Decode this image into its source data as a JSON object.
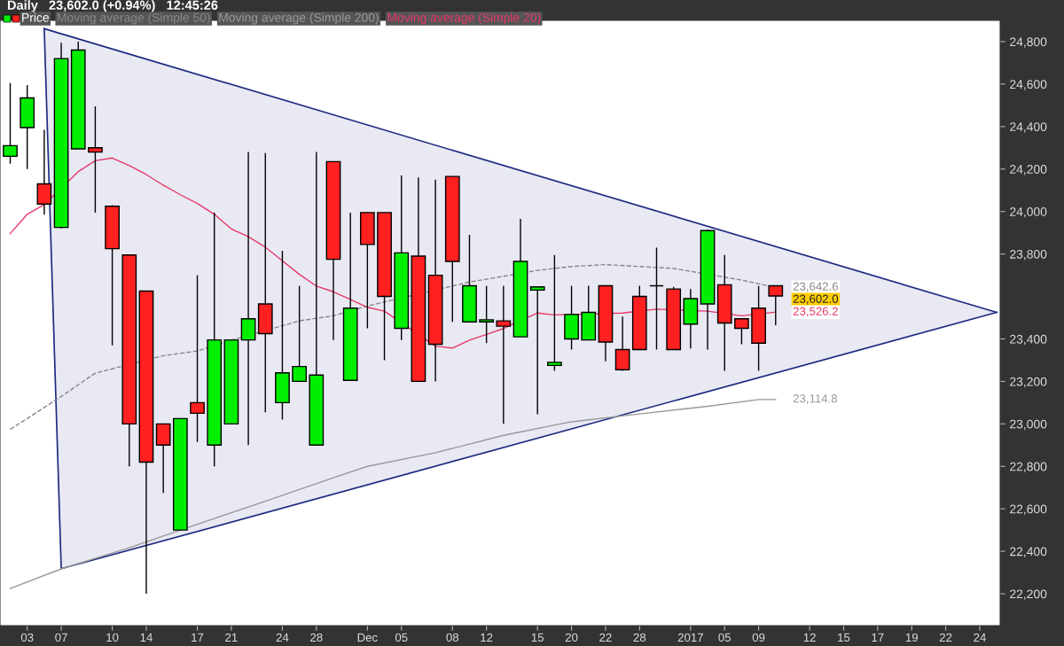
{
  "chart_data": {
    "type": "candlestick",
    "title": "Daily   23,602.0 (+0.94%)   12:45:26",
    "categories": [
      null,
      "03",
      null,
      "07",
      null,
      null,
      "10",
      null,
      "14",
      null,
      null,
      "17",
      null,
      "21",
      null,
      null,
      "24",
      null,
      "28",
      null,
      null,
      "Dec",
      null,
      "05",
      null,
      null,
      "08",
      null,
      "12",
      null,
      null,
      "15",
      null,
      "20",
      null,
      "22",
      null,
      "28",
      null,
      null,
      "2017",
      null,
      "05",
      null,
      "09",
      null,
      null,
      "12",
      null,
      "15",
      null,
      "17",
      null,
      "19",
      null,
      "22",
      null,
      "24",
      null
    ],
    "series": [
      {
        "type": "line",
        "color": "#1a2a80",
        "values": [
          null,
          null,
          24861,
          24837,
          null,
          null,
          null,
          null,
          null,
          null,
          null,
          null,
          null,
          null,
          null,
          null,
          null,
          null,
          null,
          null,
          null,
          null,
          null,
          null,
          null,
          null,
          null,
          null,
          null,
          null,
          null,
          null,
          null,
          null,
          null,
          null,
          null,
          null,
          null,
          null,
          null,
          null,
          null,
          null,
          null,
          null,
          null,
          null,
          null,
          null,
          null,
          null,
          null,
          null,
          null,
          null,
          null,
          null,
          23525
        ],
        "lower": [
          null,
          null,
          24861,
          22318,
          null,
          null,
          null,
          null,
          null,
          null,
          null,
          null,
          null,
          null,
          null,
          null,
          null,
          null,
          null,
          null,
          null,
          null,
          null,
          null,
          null,
          null,
          null,
          null,
          null,
          null,
          null,
          null,
          null,
          null,
          null,
          null,
          null,
          null,
          null,
          null,
          null,
          null,
          null,
          null,
          null,
          null,
          null,
          null,
          null,
          null,
          null,
          null,
          null,
          null,
          null,
          null,
          null,
          null,
          23525
        ],
        "upper": [
          null,
          null,
          24861,
          24837,
          null,
          null,
          null,
          null,
          null,
          null,
          null,
          null,
          null,
          null,
          null,
          null,
          null,
          null,
          null,
          null,
          null,
          null,
          null,
          null,
          null,
          null,
          null,
          null,
          null,
          null,
          null,
          null,
          null,
          null,
          null,
          null,
          null,
          null,
          null,
          null,
          null,
          null,
          null,
          null,
          null,
          null,
          null,
          null,
          null,
          null,
          null,
          null,
          null,
          null,
          null,
          null,
          null,
          null,
          23525
        ]
      },
      {
        "name": "Price",
        "color": "#ffcc00",
        "ohlc": [
          [
            24260,
            24605,
            24225,
            24310
          ],
          [
            24395,
            24595,
            24200,
            24535
          ],
          [
            24130,
            24385,
            23985,
            24035
          ],
          [
            23925,
            24795,
            23920,
            24720
          ],
          [
            24295,
            24800,
            24295,
            24760
          ],
          [
            24300,
            24495,
            23995,
            24280
          ],
          [
            24025,
            24030,
            23370,
            23825
          ],
          [
            23795,
            23795,
            22800,
            23000
          ],
          [
            23625,
            23625,
            22200,
            22820
          ],
          [
            23000,
            23000,
            22675,
            22900
          ],
          [
            22500,
            23025,
            22500,
            23025
          ],
          [
            23100,
            23700,
            22915,
            23050
          ],
          [
            22900,
            23995,
            22800,
            23395
          ],
          [
            23000,
            23395,
            23000,
            23395
          ],
          [
            23395,
            24280,
            22900,
            23495
          ],
          [
            23565,
            24275,
            23055,
            23425
          ],
          [
            23100,
            23815,
            23020,
            23240
          ],
          [
            23200,
            23650,
            23200,
            23270
          ],
          [
            22900,
            24280,
            22900,
            23230
          ],
          [
            24235,
            24235,
            23395,
            23775
          ],
          [
            23205,
            23995,
            23205,
            23545
          ],
          [
            23995,
            23995,
            23450,
            23845
          ],
          [
            23995,
            23995,
            23300,
            23600
          ],
          [
            23450,
            24170,
            23395,
            23805
          ],
          [
            23790,
            24160,
            23200,
            23200
          ],
          [
            23700,
            24150,
            23200,
            23375
          ],
          [
            24165,
            24165,
            23480,
            23765
          ],
          [
            23480,
            23890,
            23480,
            23650
          ],
          [
            23480,
            23650,
            23380,
            23490
          ],
          [
            23485,
            23650,
            23000,
            23460
          ],
          [
            23410,
            23965,
            23410,
            23765
          ],
          [
            23630,
            23645,
            23045,
            23645
          ],
          [
            23275,
            23795,
            23250,
            23290
          ],
          [
            23400,
            23650,
            23350,
            23515
          ],
          [
            23395,
            23650,
            23395,
            23525
          ],
          [
            23650,
            23650,
            23295,
            23385
          ],
          [
            23350,
            23505,
            23250,
            23255
          ],
          [
            23600,
            23650,
            23350,
            23350
          ],
          [
            23650,
            23830,
            23350,
            23650
          ],
          [
            23635,
            23645,
            23350,
            23350
          ],
          [
            23470,
            23635,
            23355,
            23590
          ],
          [
            23565,
            23915,
            23350,
            23910
          ],
          [
            23655,
            23795,
            23250,
            23475
          ],
          [
            23495,
            23495,
            23375,
            23450
          ],
          [
            23545,
            23650,
            23250,
            23380
          ],
          [
            23650,
            23650,
            23465,
            23602
          ],
          null,
          null,
          null,
          null,
          null,
          null,
          null,
          null,
          null,
          null,
          null,
          null,
          null
        ],
        "colors": [
          "#00ee00",
          "#00ee00",
          "#ff2020",
          "#00ee00",
          "#00ee00",
          "#ff2020",
          "#ff2020",
          "#ff2020",
          "#ff2020",
          "#ff2020",
          "#00ee00",
          "#ff2020",
          "#00ee00",
          "#00ee00",
          "#00ee00",
          "#ff2020",
          "#00ee00",
          "#00ee00",
          "#00ee00",
          "#ff2020",
          "#00ee00",
          "#ff2020",
          "#ff2020",
          "#00ee00",
          "#ff2020",
          "#ff2020",
          "#ff2020",
          "#00ee00",
          "#00ee00",
          "#ff2020",
          "#00ee00",
          "#00ee00",
          "#00ee00",
          "#00ee00",
          "#00ee00",
          "#ff2020",
          "#ff2020",
          "#ff2020",
          "#000000",
          "#ff2020",
          "#00ee00",
          "#00ee00",
          "#ff2020",
          "#ff2020",
          "#ff2020",
          "#ff2020",
          null,
          null,
          null,
          null,
          null,
          null,
          null,
          null,
          null,
          null,
          null,
          null,
          null
        ],
        "value_labels": [
          null,
          null,
          null,
          null,
          null,
          null,
          null,
          null,
          null,
          null,
          null,
          null,
          null,
          null,
          null,
          null,
          null,
          null,
          null,
          null,
          null,
          null,
          null,
          null,
          null,
          null,
          null,
          null,
          null,
          null,
          null,
          null,
          null,
          null,
          null,
          null,
          null,
          null,
          null,
          null,
          null,
          null,
          null,
          null,
          null,
          "23,602.0",
          null,
          null,
          null,
          null,
          null,
          null,
          null,
          null,
          null,
          null,
          null,
          null,
          null
        ]
      },
      {
        "name": "Moving average (Simple 50)",
        "type": "line",
        "color": "#888888",
        "line_style": "dashed",
        "values": [
          22974,
          null,
          null,
          23129,
          null,
          23239,
          null,
          null,
          null,
          23321,
          null,
          23343,
          null,
          23394,
          null,
          null,
          null,
          23485,
          null,
          23509,
          null,
          23555,
          null,
          null,
          null,
          null,
          null,
          23668,
          null,
          23695,
          null,
          23723,
          null,
          23741,
          null,
          23750,
          null,
          23741,
          null,
          23732,
          null,
          null,
          null,
          23677,
          null,
          23642.6,
          null,
          null,
          null,
          null,
          null,
          null,
          null,
          null,
          null,
          null,
          null,
          null,
          null
        ],
        "value_labels": [
          null,
          null,
          null,
          null,
          null,
          null,
          null,
          null,
          null,
          null,
          null,
          null,
          null,
          null,
          null,
          null,
          null,
          null,
          null,
          null,
          null,
          null,
          null,
          null,
          null,
          null,
          null,
          null,
          null,
          null,
          null,
          null,
          null,
          null,
          null,
          null,
          null,
          null,
          null,
          null,
          null,
          null,
          null,
          null,
          null,
          "23,642.6",
          null,
          null,
          null,
          null,
          null,
          null,
          null,
          null,
          null,
          null,
          null,
          null,
          null
        ]
      },
      {
        "name": "Moving average (Simple 200)",
        "type": "line",
        "color": "#999999",
        "values": [
          22225,
          null,
          null,
          22317,
          null,
          null,
          null,
          22417,
          null,
          null,
          null,
          22527,
          null,
          null,
          null,
          22636,
          null,
          null,
          null,
          22746,
          null,
          22800,
          null,
          null,
          null,
          22864,
          null,
          null,
          null,
          22946,
          null,
          null,
          null,
          23010,
          null,
          null,
          null,
          23047,
          null,
          null,
          null,
          23083,
          null,
          null,
          23114.8,
          23114.8,
          null,
          null,
          null,
          null,
          null,
          null,
          null,
          null,
          null,
          null,
          null,
          null,
          null
        ],
        "value_labels": [
          null,
          null,
          null,
          null,
          null,
          null,
          null,
          null,
          null,
          null,
          null,
          null,
          null,
          null,
          null,
          null,
          null,
          null,
          null,
          null,
          null,
          null,
          null,
          null,
          null,
          null,
          null,
          null,
          null,
          null,
          null,
          null,
          null,
          null,
          null,
          null,
          null,
          null,
          null,
          null,
          null,
          null,
          null,
          null,
          null,
          "23,114.8",
          null,
          null,
          null,
          null,
          null,
          null,
          null,
          null,
          null,
          null,
          null,
          null,
          null
        ]
      },
      {
        "name": "Moving average (Simple 20)",
        "type": "line",
        "color": "#e8386a",
        "values": [
          23896,
          23987,
          24033,
          null,
          24188,
          24239,
          24252,
          24216,
          24174,
          24124,
          24079,
          24038,
          23987,
          23918,
          23881,
          23832,
          23768,
          23704,
          23649,
          23622,
          23586,
          23549,
          23531,
          null,
          null,
          23366,
          23357,
          23394,
          23421,
          23449,
          null,
          23522,
          23513,
          null,
          null,
          null,
          23522,
          null,
          23540,
          null,
          null,
          23531,
          null,
          23509,
          null,
          23526.2,
          null,
          null,
          null,
          null,
          null,
          null,
          null,
          null,
          null,
          null,
          null,
          null,
          null
        ],
        "value_labels": [
          null,
          null,
          null,
          null,
          null,
          null,
          null,
          null,
          null,
          null,
          null,
          null,
          null,
          null,
          null,
          null,
          null,
          null,
          null,
          null,
          null,
          null,
          null,
          null,
          null,
          null,
          null,
          null,
          null,
          null,
          null,
          null,
          null,
          null,
          null,
          null,
          null,
          null,
          null,
          null,
          null,
          null,
          null,
          null,
          null,
          "23,526.2",
          null,
          null,
          null,
          null,
          null,
          null,
          null,
          null,
          null,
          null,
          null,
          null,
          null
        ]
      }
    ],
    "ylim": [
      22050,
      24900
    ],
    "yticks": [
      {
        "value": 22200,
        "label": "22,200"
      },
      {
        "value": 22400,
        "label": "22,400"
      },
      {
        "value": 22600,
        "label": "22,600"
      },
      {
        "value": 22800,
        "label": "22,800"
      },
      {
        "value": 23000,
        "label": "23,000"
      },
      {
        "value": 23200,
        "label": "23,200"
      },
      {
        "value": 23400,
        "label": "23,400"
      },
      {
        "value": 23800,
        "label": "23,800"
      },
      {
        "value": 24000,
        "label": "24,000"
      },
      {
        "value": 24200,
        "label": "24,200"
      },
      {
        "value": 24400,
        "label": "24,400"
      },
      {
        "value": 24600,
        "label": "24,600"
      },
      {
        "value": 24800,
        "label": "24,800"
      }
    ],
    "legend": "top left",
    "grid": false
  }
}
